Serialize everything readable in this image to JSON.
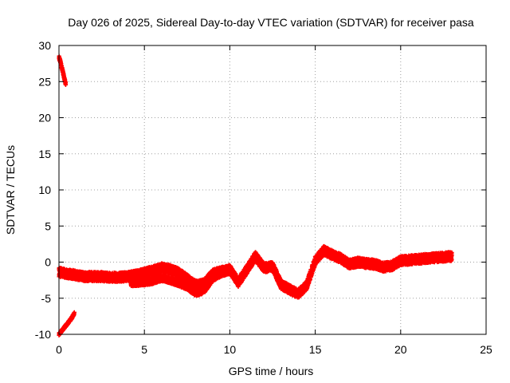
{
  "chart_data": {
    "type": "scatter",
    "title": "Day 026 of 2025, Sidereal Day-to-day VTEC variation (SDTVAR) for receiver pasa",
    "xlabel": "GPS time / hours",
    "ylabel": "SDTVAR / TECUs",
    "xlim": [
      0,
      25
    ],
    "ylim": [
      -10,
      30
    ],
    "xticks": [
      0,
      5,
      10,
      15,
      20,
      25
    ],
    "yticks": [
      -10,
      -5,
      0,
      5,
      10,
      15,
      20,
      25,
      30
    ],
    "grid": true,
    "legend": "none",
    "series_color": "#ff0000",
    "series": [
      {
        "name": "early-high-branch",
        "x": [
          0.0,
          0.05,
          0.1,
          0.15,
          0.2,
          0.25,
          0.3,
          0.35,
          0.4
        ],
        "y": [
          28.3,
          28.0,
          27.6,
          27.1,
          26.6,
          26.1,
          25.6,
          25.1,
          24.7
        ],
        "band": 0.6
      },
      {
        "name": "early-low-branch",
        "x": [
          0.0,
          0.1,
          0.2,
          0.3,
          0.4,
          0.5,
          0.6,
          0.7,
          0.8,
          0.9
        ],
        "y": [
          -10.0,
          -9.7,
          -9.4,
          -9.1,
          -8.8,
          -8.5,
          -8.2,
          -7.9,
          -7.5,
          -7.1
        ],
        "band": 0.4
      },
      {
        "name": "sdtvar-main",
        "x": [
          0.0,
          0.5,
          1.0,
          1.5,
          2.0,
          2.5,
          3.0,
          3.5,
          4.0,
          4.5,
          5.0,
          5.5,
          6.0,
          6.5,
          7.0,
          7.5,
          8.0,
          8.5,
          9.0,
          9.5,
          10.0,
          10.5,
          11.0,
          11.5,
          12.0,
          12.5,
          13.0,
          13.5,
          14.0,
          14.5,
          15.0,
          15.5,
          16.0,
          16.5,
          17.0,
          17.5,
          18.0,
          18.5,
          19.0,
          19.5,
          20.0,
          20.5,
          21.0,
          21.5,
          22.0,
          22.5,
          23.0
        ],
        "y": [
          -1.4,
          -1.6,
          -1.8,
          -2.0,
          -2.0,
          -2.0,
          -2.1,
          -2.1,
          -2.0,
          -1.8,
          -1.5,
          -1.2,
          -0.8,
          -1.0,
          -1.5,
          -2.3,
          -3.2,
          -3.0,
          -1.6,
          -1.3,
          -1.0,
          -2.8,
          -1.0,
          0.8,
          -0.8,
          -0.6,
          -3.1,
          -3.8,
          -4.4,
          -3.2,
          0.2,
          1.6,
          1.0,
          0.5,
          -0.3,
          0.0,
          -0.2,
          -0.3,
          -0.7,
          -0.5,
          0.2,
          0.3,
          0.4,
          0.5,
          0.6,
          0.7,
          0.8
        ],
        "band": 1.3
      },
      {
        "name": "sdtvar-secondary",
        "x": [
          4.2,
          5.0,
          5.5,
          6.0,
          6.5,
          7.0,
          7.5,
          8.0,
          8.5,
          9.0,
          9.5,
          10.0
        ],
        "y": [
          -2.9,
          -2.8,
          -2.6,
          -2.2,
          -2.5,
          -2.9,
          -3.4,
          -4.3,
          -3.9,
          -2.2,
          -1.6,
          -1.2
        ],
        "band": 0.9
      }
    ]
  }
}
